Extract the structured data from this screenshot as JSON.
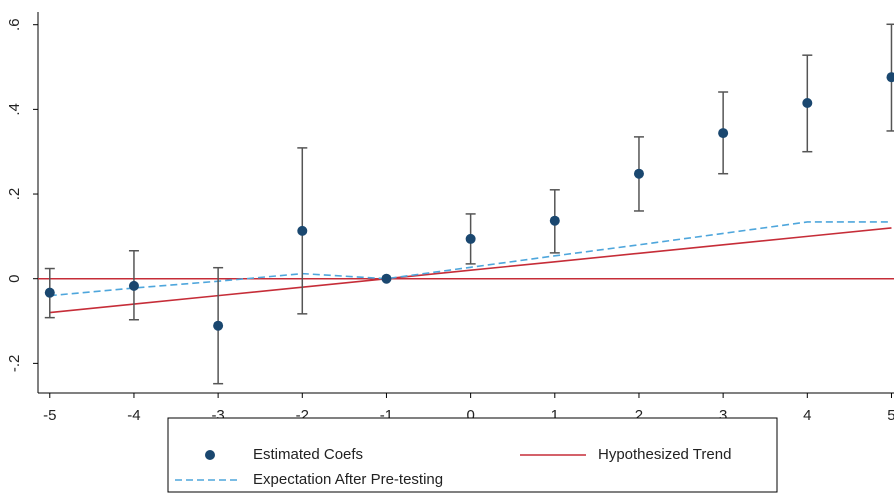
{
  "chart_data": {
    "type": "line",
    "x": [
      -5,
      -4,
      -3,
      -2,
      -1,
      0,
      1,
      2,
      3,
      4,
      5
    ],
    "xlim": [
      -5.14,
      5.03
    ],
    "xticks": [
      -5,
      -4,
      -3,
      -2,
      -1,
      0,
      1,
      2,
      3,
      4,
      5
    ],
    "ylim": [
      -0.27,
      0.63
    ],
    "yticks": [
      {
        "value": -0.2,
        "label": "-.2"
      },
      0,
      {
        "value": 0.2,
        "label": ".2"
      },
      {
        "value": 0.4,
        "label": ".4"
      },
      {
        "value": 0.6,
        "label": ".6"
      }
    ],
    "yline": 0,
    "yline_color": "#c62d38",
    "series": [
      {
        "name": "Estimated Coefs",
        "mode": "markers",
        "color": "#1a476f",
        "values": [
          -0.033,
          -0.017,
          -0.111,
          0.113,
          0,
          0.094,
          0.137,
          0.248,
          0.344,
          0.415,
          0.476
        ],
        "lower": [
          -0.092,
          -0.097,
          -0.248,
          -0.083,
          null,
          0.035,
          0.061,
          0.16,
          0.248,
          0.3,
          0.349
        ],
        "upper": [
          0.024,
          0.066,
          0.026,
          0.309,
          null,
          0.153,
          0.21,
          0.335,
          0.441,
          0.528,
          0.601
        ],
        "errorbar_color": "#555555"
      },
      {
        "name": "Hypothesized Trend",
        "mode": "solid",
        "color": "#c62d38",
        "values": [
          -0.08,
          -0.06,
          -0.04,
          -0.02,
          0,
          0.02,
          0.04,
          0.06,
          0.08,
          0.1,
          0.12
        ]
      },
      {
        "name": "Expectation After Pre-testing",
        "mode": "dashed",
        "color": "#4ea6dc",
        "values": [
          -0.04,
          -0.022,
          -0.006,
          0.012,
          0,
          0.027,
          0.054,
          0.08,
          0.107,
          0.134,
          0.134
        ]
      }
    ],
    "legend": "bottom"
  }
}
